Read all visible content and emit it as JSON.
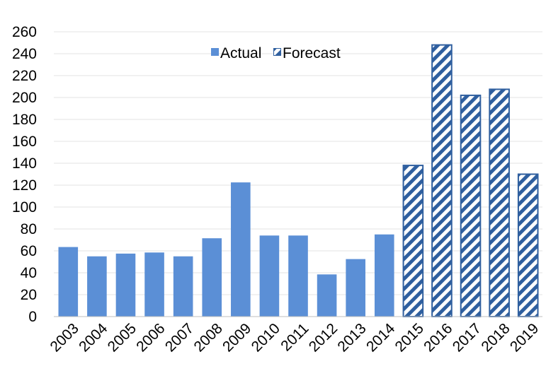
{
  "chart_data": {
    "type": "bar",
    "categories": [
      "2003",
      "2004",
      "2005",
      "2006",
      "2007",
      "2008",
      "2009",
      "2010",
      "2011",
      "2012",
      "2013",
      "2014",
      "2015",
      "2016",
      "2017",
      "2018",
      "2019"
    ],
    "series": [
      {
        "name": "Actual",
        "values": [
          63.5,
          55,
          57.5,
          58.5,
          55,
          71.5,
          122.5,
          74,
          74,
          38.5,
          52.5,
          75,
          null,
          null,
          null,
          null,
          null
        ],
        "color": "#5b8fd6",
        "pattern": "solid"
      },
      {
        "name": "Forecast",
        "values": [
          null,
          null,
          null,
          null,
          null,
          null,
          null,
          null,
          null,
          null,
          null,
          null,
          138,
          248,
          202,
          207.5,
          130
        ],
        "color": "#2f5f9f",
        "pattern": "diagonal-stripes"
      }
    ],
    "yticks": [
      "0",
      "20",
      "40",
      "60",
      "80",
      "100",
      "120",
      "140",
      "160",
      "180",
      "200",
      "220",
      "240",
      "260"
    ],
    "ylim": [
      0,
      260
    ],
    "title": "",
    "xlabel": "",
    "ylabel": "",
    "grid": "horizontal",
    "legend": "top-center"
  }
}
